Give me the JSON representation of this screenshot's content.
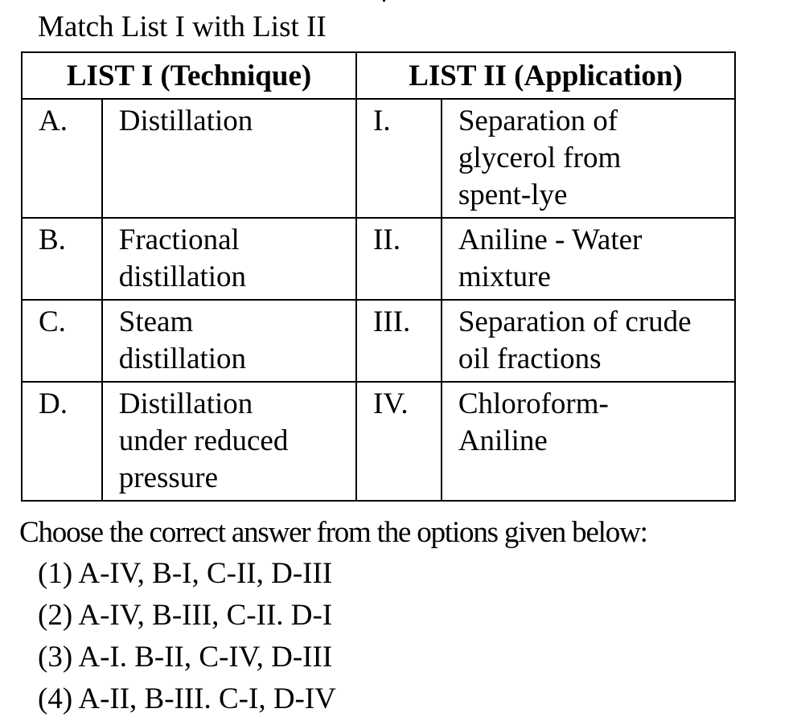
{
  "question": {
    "prompt": "Match List I with List II"
  },
  "table": {
    "headers": {
      "list1": "LIST I (Technique)",
      "list2": "LIST II (Application)"
    },
    "rows": [
      {
        "l1_key": "A.",
        "l1_lines": [
          "Distillation"
        ],
        "l2_key": "I.",
        "l2_lines": [
          "Separation of",
          "glycerol from",
          "spent-lye"
        ]
      },
      {
        "l1_key": "B.",
        "l1_lines": [
          "Fractional",
          "distillation"
        ],
        "l2_key": "II.",
        "l2_lines": [
          "Aniline - Water",
          "mixture"
        ]
      },
      {
        "l1_key": "C.",
        "l1_lines": [
          "Steam",
          "distillation"
        ],
        "l2_key": "III.",
        "l2_lines": [
          "Separation of crude",
          "oil fractions"
        ]
      },
      {
        "l1_key": "D.",
        "l1_lines": [
          "Distillation",
          "under reduced",
          "pressure"
        ],
        "l2_key": "IV.",
        "l2_lines": [
          "Chloroform-",
          "Aniline"
        ]
      }
    ]
  },
  "instruction": "Choose the correct answer from the options given below:",
  "options": [
    "(1) A-IV, B-I, C-II, D-III",
    "(2) A-IV, B-III, C-II. D-I",
    "(3) A-I. B-II, C-IV, D-III",
    "(4) A-II, B-III. C-I, D-IV"
  ]
}
